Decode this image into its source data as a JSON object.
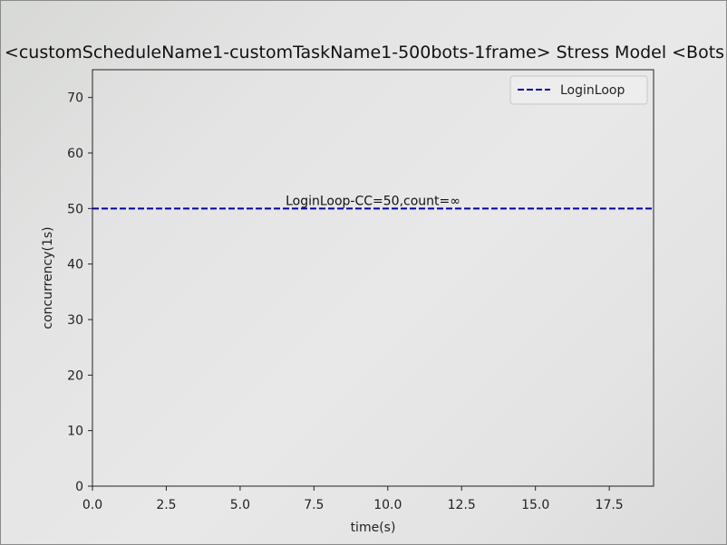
{
  "chart_data": {
    "type": "line",
    "title": "<customScheduleName1-customTaskName1-500bots-1frame> Stress Model <Bots",
    "xlabel": "time(s)",
    "ylabel": "concurrency(1s)",
    "xlim": [
      0,
      19
    ],
    "ylim": [
      0,
      75
    ],
    "x_ticks": [
      0.0,
      2.5,
      5.0,
      7.5,
      10.0,
      12.5,
      15.0,
      17.5
    ],
    "x_tick_labels": [
      "0.0",
      "2.5",
      "5.0",
      "7.5",
      "10.0",
      "12.5",
      "15.0",
      "17.5"
    ],
    "y_ticks": [
      0,
      10,
      20,
      30,
      40,
      50,
      60,
      70
    ],
    "y_tick_labels": [
      "0",
      "10",
      "20",
      "30",
      "40",
      "50",
      "60",
      "70"
    ],
    "grid": false,
    "legend_position": "top-right",
    "series": [
      {
        "name": "LoginLoop",
        "color": "#0000aa",
        "linestyle": "dashed",
        "x": [
          0,
          19
        ],
        "y": [
          50,
          50
        ]
      }
    ],
    "annotations": [
      {
        "text": "LoginLoop-CC=50,count=∞",
        "x": 9.5,
        "y": 50
      }
    ]
  }
}
